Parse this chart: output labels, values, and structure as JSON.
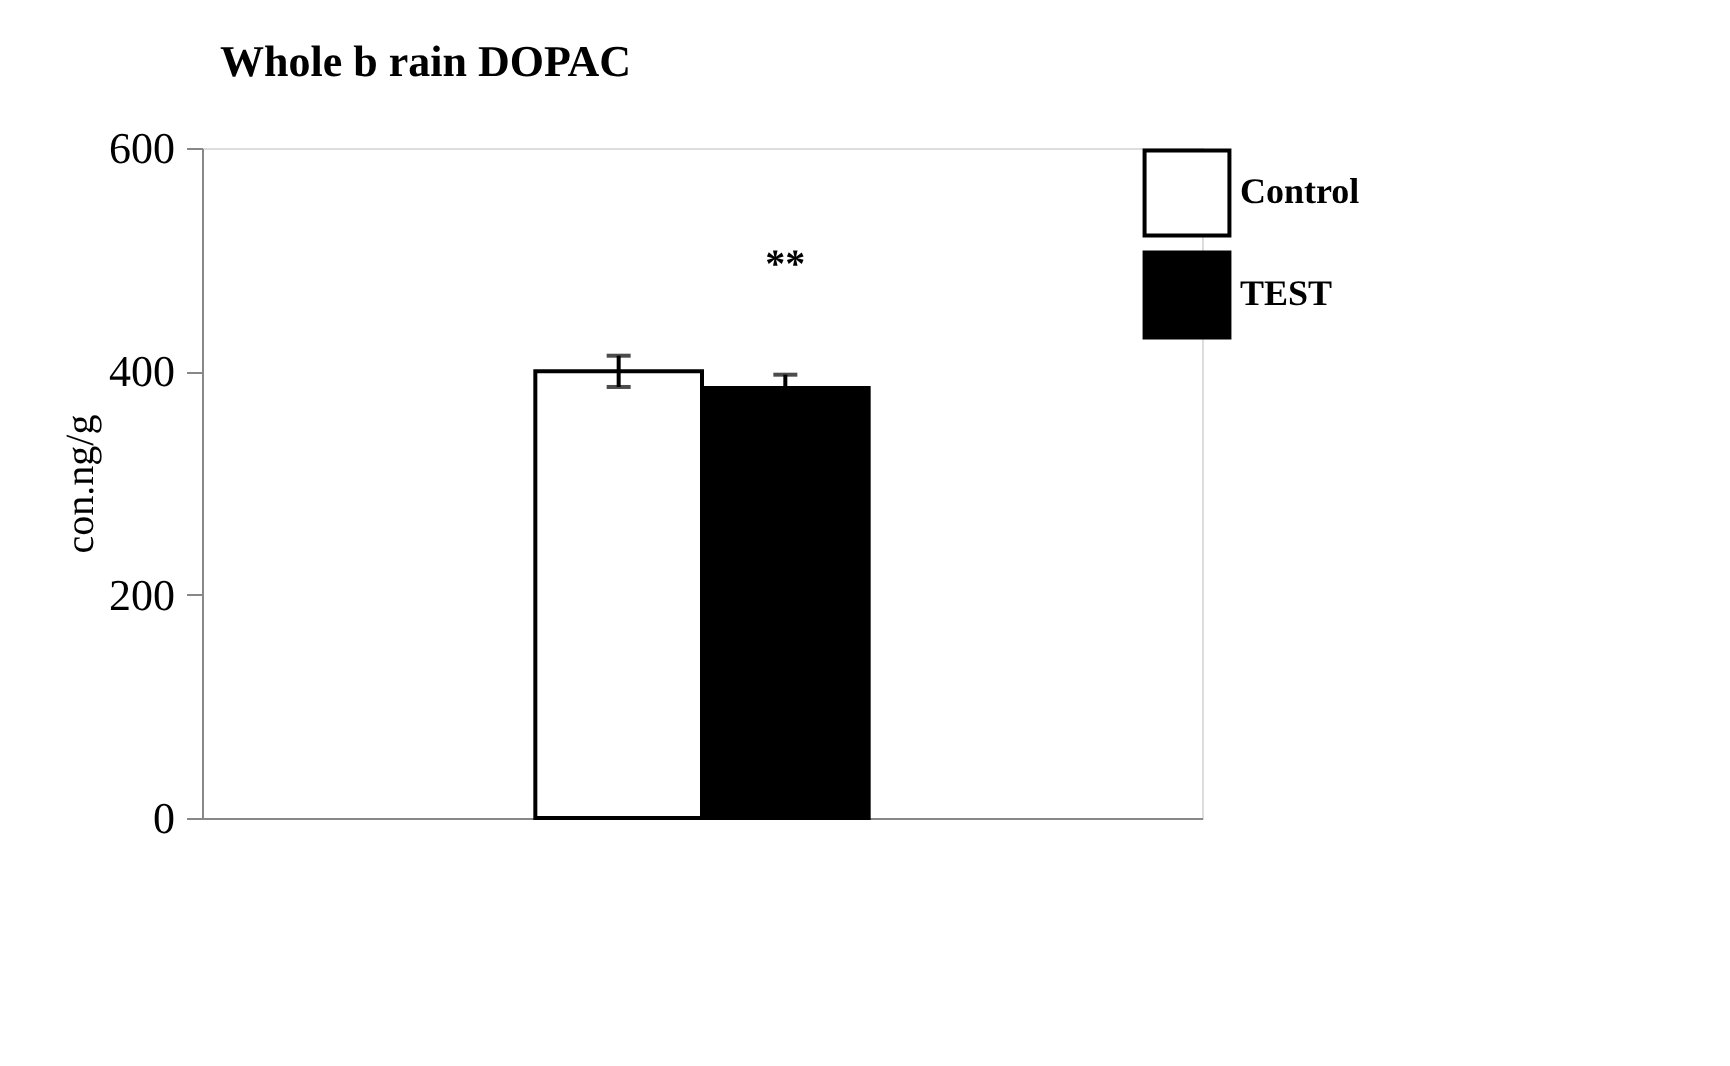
{
  "chart_data": {
    "type": "bar",
    "title": "Whole b rain DOPAC",
    "ylabel": "con.ng/g",
    "categories": [
      null
    ],
    "series": [
      {
        "name": "Control",
        "color": "#ffffff",
        "values": [
          400
        ],
        "errors": [
          14
        ]
      },
      {
        "name": "TEST",
        "color": "#000000",
        "values": [
          385
        ],
        "errors": [
          12
        ]
      }
    ],
    "ylim": [
      0,
      600
    ],
    "yticks": [
      0,
      200,
      400,
      600
    ],
    "grid": false,
    "legend": "right",
    "annotations": [
      "**"
    ]
  }
}
